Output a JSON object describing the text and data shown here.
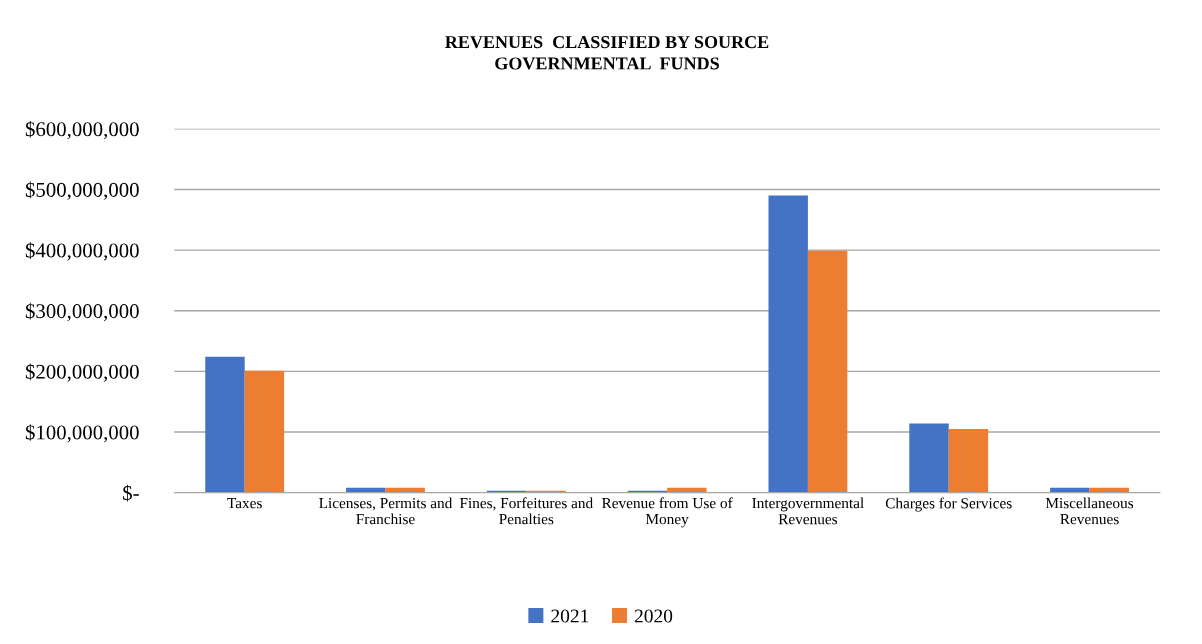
{
  "chart_data": {
    "type": "bar",
    "title": "REVENUES  CLASSIFIED BY SOURCE\nGOVERNMENTAL  FUNDS",
    "categories": [
      "Taxes",
      "Licenses, Permits and\nFranchise",
      "Fines, Forfeitures and\nPenalties",
      "Revenue from Use of\nMoney",
      "Intergovernmental\nRevenues",
      "Charges for Services",
      "Miscellaneous\nRevenues"
    ],
    "series": [
      {
        "name": "2021",
        "color": "#4472c4",
        "values": [
          224000000,
          8000000,
          3000000,
          3000000,
          490000000,
          114000000,
          8000000
        ]
      },
      {
        "name": "2020",
        "color": "#ed7d31",
        "values": [
          201000000,
          8000000,
          3000000,
          8000000,
          399000000,
          105000000,
          8000000
        ]
      }
    ],
    "ylim": [
      0,
      600000000
    ],
    "yticks": [
      {
        "value": 0,
        "label": "$-"
      },
      {
        "value": 100000000,
        "label": "$100,000,000"
      },
      {
        "value": 200000000,
        "label": "$200,000,000"
      },
      {
        "value": 300000000,
        "label": "$300,000,000"
      },
      {
        "value": 400000000,
        "label": "$400,000,000"
      },
      {
        "value": 500000000,
        "label": "$500,000,000"
      },
      {
        "value": 600000000,
        "label": "$600,000,000"
      }
    ],
    "grid": "y",
    "legend": "bottom"
  }
}
